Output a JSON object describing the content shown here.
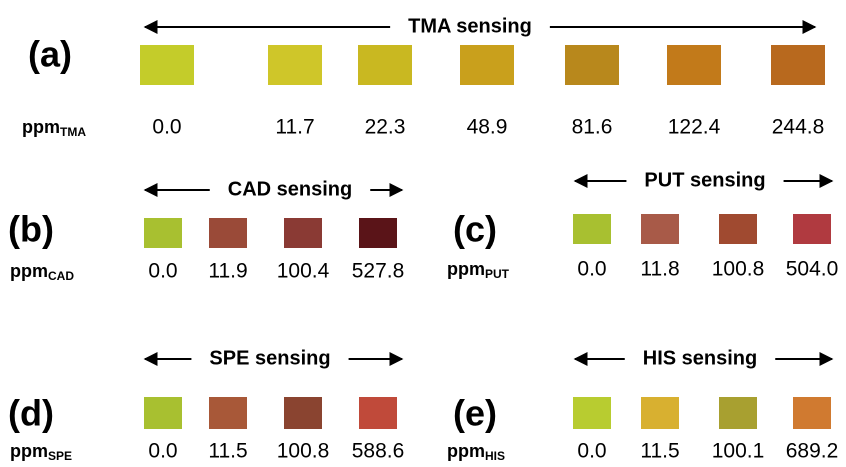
{
  "panels": [
    {
      "label": "(a)",
      "title": "TMA sensing",
      "ppm": "ppm",
      "subscript": "TMA",
      "concentrations": [
        "0.0",
        "11.7",
        "22.3",
        "48.9",
        "81.6",
        "122.4",
        "244.8"
      ],
      "colors": [
        "#c4cc2a",
        "#cfc629",
        "#c9b821",
        "#c9a01c",
        "#b8881c",
        "#c27a1a",
        "#b8691e"
      ]
    },
    {
      "label": "(b)",
      "title": "CAD sensing",
      "ppm": "ppm",
      "subscript": "CAD",
      "concentrations": [
        "0.0",
        "11.9",
        "100.4",
        "527.8"
      ],
      "colors": [
        "#a8c030",
        "#9a4a38",
        "#8a3a34",
        "#5a1418"
      ]
    },
    {
      "label": "(c)",
      "title": "PUT sensing",
      "ppm": "ppm",
      "subscript": "PUT",
      "concentrations": [
        "0.0",
        "11.8",
        "100.8",
        "504.0"
      ],
      "colors": [
        "#a8c030",
        "#a85a48",
        "#a04a30",
        "#b03a40"
      ]
    },
    {
      "label": "(d)",
      "title": "SPE sensing",
      "ppm": "ppm",
      "subscript": "SPE",
      "concentrations": [
        "0.0",
        "11.5",
        "100.8",
        "588.6"
      ],
      "colors": [
        "#a8c030",
        "#a85838",
        "#8a4430",
        "#c04a3a"
      ]
    },
    {
      "label": "(e)",
      "title": "HIS sensing",
      "ppm": "ppm",
      "subscript": "HIS",
      "concentrations": [
        "0.0",
        "11.5",
        "100.1",
        "689.2"
      ],
      "colors": [
        "#b8cc30",
        "#d8b030",
        "#a8a030",
        "#d07a30"
      ]
    }
  ]
}
